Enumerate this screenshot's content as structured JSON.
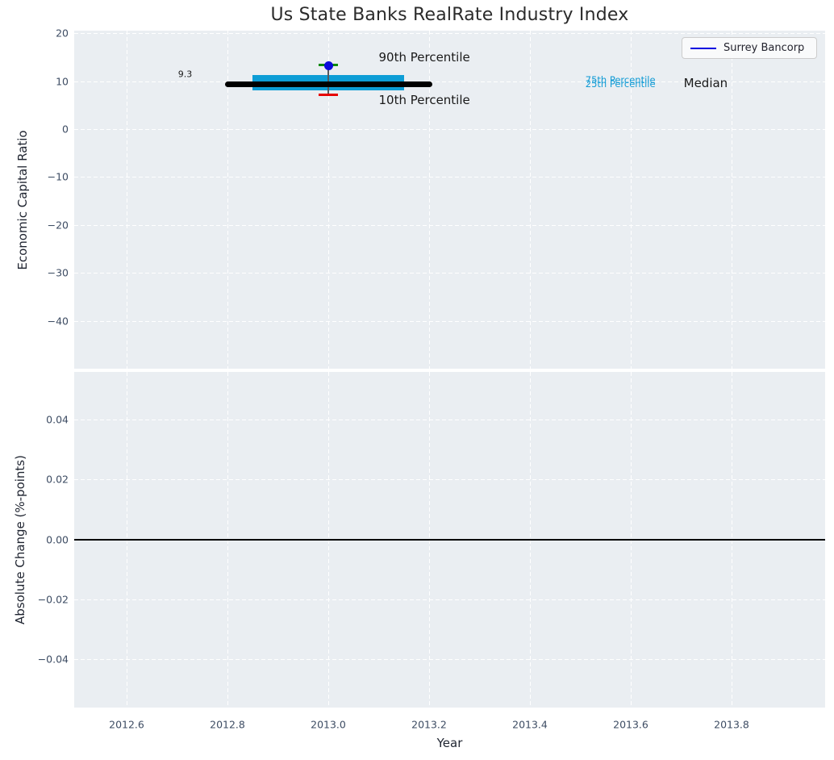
{
  "colors": {
    "background": "#ffffff",
    "axes_background": "#eaeef2",
    "grid": "#ffffff",
    "tick_label": "#3d4c63",
    "title": "#2b2b2b",
    "box_fill": "#0d9dd6",
    "percentile_text": "#119bd5",
    "median_line": "#000000",
    "p90_cap": "#0c8a0c",
    "p10_cap": "#e60000",
    "whisker_line": "#55595e",
    "point_fill": "#0b0bdb",
    "legend_line": "#0000e0",
    "zero_line": "#000000"
  },
  "chart_data": [
    {
      "type": "boxplot",
      "title": "Us State Banks RealRate Industry Index",
      "ylabel": "Economic Capital Ratio",
      "xlim": [
        2012.5,
        2013.99
      ],
      "ylim": [
        -50,
        20.5
      ],
      "yticks": [
        20,
        10,
        0,
        -10,
        -20,
        -30,
        -40
      ],
      "ytick_labels": [
        "20",
        "10",
        "0",
        "−10",
        "−20",
        "−30",
        "−40"
      ],
      "xticks": [
        2012.6,
        2012.8,
        2013.0,
        2013.2,
        2013.4,
        2013.6,
        2013.8
      ],
      "grid": "white dashed",
      "legend": {
        "label": "Surrey Bancorp",
        "position": "upper right"
      },
      "industry_stats": {
        "year": 2013.0,
        "median": 9.3,
        "p25": 8.1,
        "p75": 11.3,
        "p10": 7.2,
        "p90": 13.3,
        "box_half_width_years": 0.15,
        "median_half_width_years": 0.2
      },
      "series": [
        {
          "name": "Surrey Bancorp",
          "style": "point",
          "x": [
            2013.0
          ],
          "y": [
            13.2
          ]
        }
      ],
      "annotations": [
        {
          "text": "9.3",
          "x": 2012.73,
          "y": 11.4,
          "ha": "right",
          "size": 11,
          "color": "#1a1a1a"
        },
        {
          "text": "90th Percentile",
          "x": 2013.1,
          "y": 14.9,
          "ha": "left",
          "size": 15,
          "color": "#1a1a1a"
        },
        {
          "text": "10th Percentile",
          "x": 2013.1,
          "y": 6.0,
          "ha": "left",
          "size": 15,
          "color": "#1a1a1a"
        },
        {
          "text": "75th Percentile",
          "x": 2013.51,
          "y": 10.35,
          "ha": "left",
          "size": 11.5,
          "color": "#119bd5"
        },
        {
          "text": "25th Percentile",
          "x": 2013.51,
          "y": 9.5,
          "ha": "left",
          "size": 11.5,
          "color": "#119bd5"
        },
        {
          "text": "Median",
          "x": 2013.705,
          "y": 9.6,
          "ha": "left",
          "size": 15,
          "color": "#1a1a1a"
        }
      ]
    },
    {
      "type": "line",
      "ylabel": "Absolute Change (%-points)",
      "xlabel": "Year",
      "xlim": [
        2012.5,
        2013.99
      ],
      "ylim": [
        -0.056,
        0.056
      ],
      "yticks": [
        0.04,
        0.02,
        0.0,
        -0.02,
        -0.04
      ],
      "ytick_labels": [
        "0.04",
        "0.02",
        "0.00",
        "−0.02",
        "−0.04"
      ],
      "xticks": [
        2012.6,
        2012.8,
        2013.0,
        2013.2,
        2013.4,
        2013.6,
        2013.8
      ],
      "xtick_labels": [
        "2012.6",
        "2012.8",
        "2013.0",
        "2013.2",
        "2013.4",
        "2013.6",
        "2013.8"
      ],
      "zero_line": 0.0,
      "grid": "white dashed",
      "series": []
    }
  ]
}
